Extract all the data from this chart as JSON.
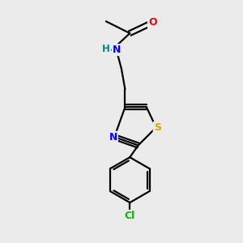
{
  "background_color": "#ebebeb",
  "bond_color": "#000000",
  "atom_colors": {
    "O": "#ff0000",
    "N": "#0000ff",
    "S": "#ccaa00",
    "Cl": "#00bb00",
    "C": "#000000",
    "H": "#008888"
  },
  "figsize": [
    3.0,
    3.0
  ],
  "dpi": 100,
  "lw": 1.6
}
